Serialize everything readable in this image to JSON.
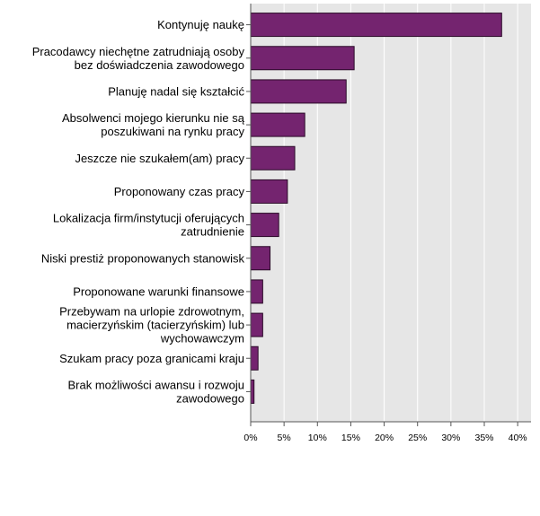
{
  "chart_data": {
    "type": "bar",
    "orientation": "horizontal",
    "title": "",
    "xlabel": "",
    "ylabel": "",
    "xlim": [
      0,
      42
    ],
    "grid": true,
    "legend": "none",
    "colors": {
      "bar_fill": "#74246f",
      "bar_stroke": "#2a0a28",
      "plot_background": "#e6e6e6",
      "grid": "#ffffff",
      "axis": "#555555"
    },
    "categories": [
      [
        "Kontynuję naukę"
      ],
      [
        "Pracodawcy niechętne zatrudniają osoby",
        "bez doświadczenia zawodowego"
      ],
      [
        "Planuję nadal się kształcić"
      ],
      [
        "Absolwenci mojego kierunku nie są",
        "poszukiwani na rynku pracy"
      ],
      [
        "Jeszcze nie szukałem(am) pracy"
      ],
      [
        "Proponowany czas pracy"
      ],
      [
        "Lokalizacja firm/instytucji oferujących",
        "zatrudnienie"
      ],
      [
        "Niski prestiż proponowanych stanowisk"
      ],
      [
        "Proponowane warunki finansowe"
      ],
      [
        "Przebywam na urlopie zdrowotnym,",
        "macierzyńskim (tacierzyńskim) lub",
        "wychowawczym"
      ],
      [
        "Szukam pracy poza granicami kraju"
      ],
      [
        "Brak możliwości awansu i rozwoju",
        "zawodowego"
      ]
    ],
    "values": [
      37.6,
      15.5,
      14.3,
      8.1,
      6.6,
      5.5,
      4.2,
      2.9,
      1.8,
      1.8,
      1.1,
      0.5
    ],
    "x_ticks": [
      "0%",
      "5%",
      "10%",
      "15%",
      "20%",
      "25%",
      "30%",
      "35%",
      "40%"
    ],
    "x_tick_values": [
      0,
      5,
      10,
      15,
      20,
      25,
      30,
      35,
      40
    ]
  }
}
